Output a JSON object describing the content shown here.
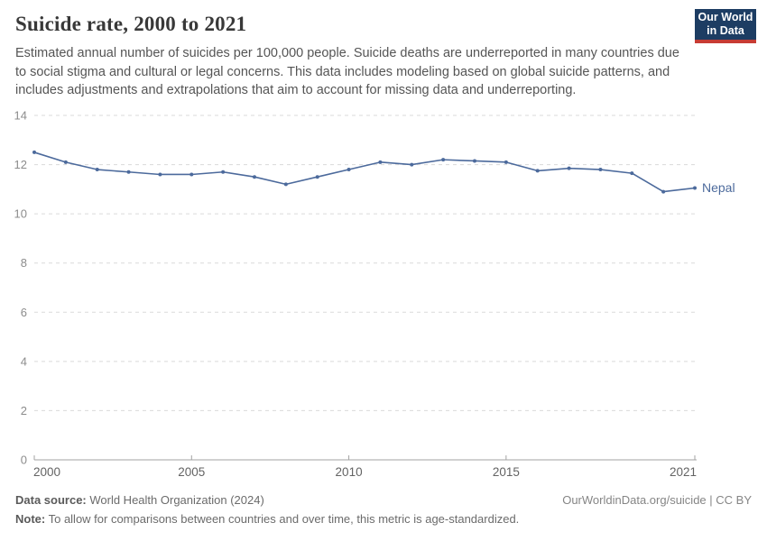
{
  "header": {
    "title": "Suicide rate, 2000 to 2021",
    "subtitle": "Estimated annual number of suicides per 100,000 people. Suicide deaths are underreported in many countries due to social stigma and cultural or legal concerns. This data includes modeling based on global suicide patterns, and includes adjustments and extrapolations that aim to account for missing data and underreporting.",
    "logo": {
      "line1": "Our World",
      "line2": "in Data",
      "bg_color": "#1d3d63",
      "accent_color": "#c73c34"
    }
  },
  "chart_data": {
    "type": "line",
    "title": "Suicide rate, 2000 to 2021",
    "x": [
      2000,
      2001,
      2002,
      2003,
      2004,
      2005,
      2006,
      2007,
      2008,
      2009,
      2010,
      2011,
      2012,
      2013,
      2014,
      2015,
      2016,
      2017,
      2018,
      2019,
      2020,
      2021
    ],
    "series": [
      {
        "name": "Nepal",
        "color": "#4c6a9c",
        "values": [
          12.5,
          12.1,
          11.8,
          11.7,
          11.6,
          11.6,
          11.7,
          11.5,
          11.2,
          11.5,
          11.8,
          12.1,
          12.0,
          12.2,
          12.15,
          12.1,
          11.75,
          11.85,
          11.8,
          11.65,
          10.9,
          11.05
        ]
      }
    ],
    "xlabel": "",
    "ylabel": "",
    "ylim": [
      0,
      14
    ],
    "yticks": [
      0,
      2,
      4,
      6,
      8,
      10,
      12,
      14
    ],
    "xticks": [
      2000,
      2005,
      2010,
      2015,
      2021
    ],
    "grid": "horizontal-dashed",
    "legend_position": "end-of-line-label",
    "axis_color": "#a3a3a3",
    "grid_color": "#dadada"
  },
  "footer": {
    "datasource_label": "Data source:",
    "datasource_value": " World Health Organization (2024)",
    "attribution": "OurWorldinData.org/suicide | CC BY",
    "note_label": "Note:",
    "note_value": " To allow for comparisons between countries and over time, this metric is age-standardized."
  }
}
